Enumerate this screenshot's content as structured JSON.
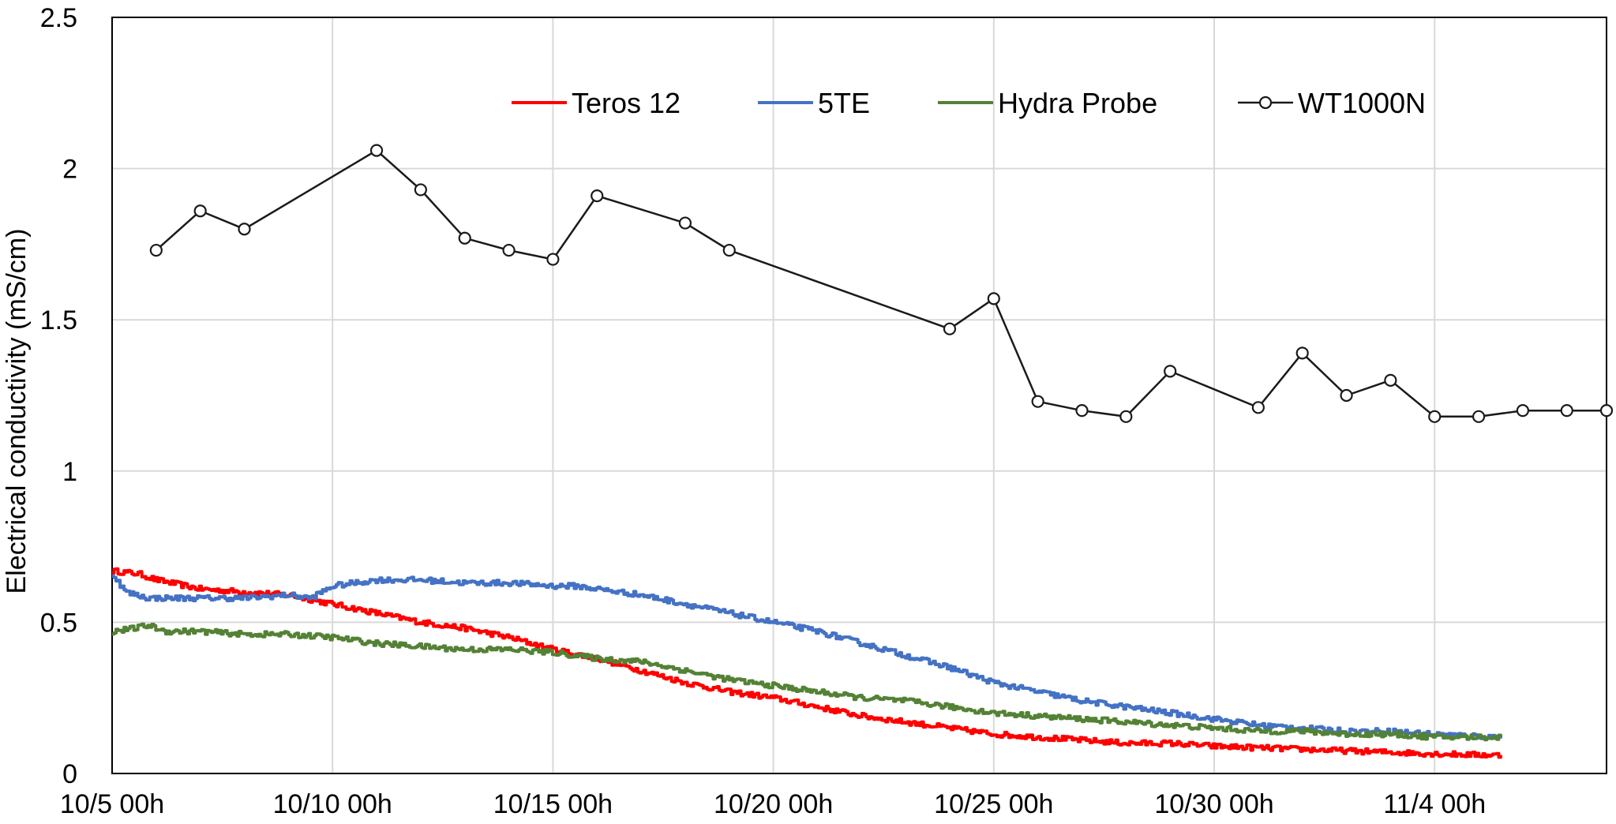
{
  "chart_data": {
    "type": "line",
    "title": "",
    "xlabel": "",
    "ylabel": "Electrical conductivity (mS/cm)",
    "x_unit": "day offset from 10/5 00h",
    "xlim": [
      0,
      33.9
    ],
    "ylim": [
      0,
      2.5
    ],
    "x_ticks": [
      {
        "value": 0,
        "label": "10/5 00h"
      },
      {
        "value": 5,
        "label": "10/10 00h"
      },
      {
        "value": 10,
        "label": "10/15 00h"
      },
      {
        "value": 15,
        "label": "10/20 00h"
      },
      {
        "value": 20,
        "label": "10/25 00h"
      },
      {
        "value": 25,
        "label": "10/30 00h"
      },
      {
        "value": 30,
        "label": "11/4 00h"
      }
    ],
    "y_ticks": [
      {
        "value": 0,
        "label": "0"
      },
      {
        "value": 0.5,
        "label": "0.5"
      },
      {
        "value": 1,
        "label": "1"
      },
      {
        "value": 1.5,
        "label": "1.5"
      },
      {
        "value": 2,
        "label": "2"
      },
      {
        "value": 2.5,
        "label": "2.5"
      }
    ],
    "grid": true,
    "legend_position": "top",
    "series": [
      {
        "name": "Teros 12",
        "color": "#ff0000",
        "style": "noisy-step",
        "x": [
          0,
          0.6,
          1,
          2,
          3,
          4,
          5,
          6,
          7,
          8,
          9,
          10,
          11,
          12,
          13,
          14,
          15,
          16,
          17,
          18,
          19,
          20,
          21,
          22,
          23,
          24,
          25,
          26,
          27,
          28,
          29,
          30,
          31.5
        ],
        "y": [
          0.67,
          0.66,
          0.64,
          0.61,
          0.6,
          0.59,
          0.56,
          0.53,
          0.5,
          0.48,
          0.45,
          0.41,
          0.38,
          0.34,
          0.3,
          0.27,
          0.25,
          0.22,
          0.19,
          0.17,
          0.15,
          0.13,
          0.12,
          0.11,
          0.1,
          0.1,
          0.09,
          0.085,
          0.08,
          0.075,
          0.07,
          0.065,
          0.06
        ]
      },
      {
        "name": "5TE",
        "color": "#4472c4",
        "style": "noisy-step",
        "x": [
          0,
          0.3,
          0.8,
          1.5,
          3,
          4,
          4.5,
          5,
          6,
          7,
          8,
          9,
          10,
          10.5,
          11,
          12,
          13,
          14,
          15,
          16,
          17,
          18,
          19,
          20,
          21,
          22,
          23,
          24,
          25,
          26,
          27,
          28,
          29,
          30,
          31.5
        ],
        "y": [
          0.66,
          0.6,
          0.58,
          0.58,
          0.58,
          0.59,
          0.58,
          0.62,
          0.64,
          0.64,
          0.63,
          0.63,
          0.62,
          0.62,
          0.61,
          0.59,
          0.56,
          0.53,
          0.5,
          0.47,
          0.43,
          0.39,
          0.35,
          0.3,
          0.27,
          0.24,
          0.22,
          0.2,
          0.18,
          0.16,
          0.15,
          0.14,
          0.14,
          0.13,
          0.12
        ]
      },
      {
        "name": "Hydra Probe",
        "color": "#548235",
        "style": "noisy-step",
        "x": [
          0,
          0.5,
          0.8,
          1.2,
          2,
          3,
          4,
          5,
          6,
          7,
          8,
          9,
          10,
          11,
          12,
          13,
          14,
          15,
          16,
          17,
          18,
          19,
          20,
          21,
          22,
          23,
          24,
          25,
          26,
          27,
          28,
          29,
          30,
          31.5
        ],
        "y": [
          0.47,
          0.48,
          0.49,
          0.47,
          0.47,
          0.46,
          0.46,
          0.45,
          0.43,
          0.42,
          0.41,
          0.41,
          0.4,
          0.38,
          0.37,
          0.34,
          0.31,
          0.29,
          0.27,
          0.25,
          0.24,
          0.22,
          0.2,
          0.19,
          0.18,
          0.17,
          0.16,
          0.15,
          0.14,
          0.14,
          0.13,
          0.13,
          0.12,
          0.12
        ]
      },
      {
        "name": "WT1000N",
        "color": "#1a1a1a",
        "style": "line-markers",
        "x": [
          1,
          2,
          3,
          6,
          7,
          8,
          9,
          10,
          11,
          13,
          14,
          19,
          20,
          21,
          22,
          23,
          24,
          26,
          27,
          28,
          29,
          30,
          31,
          32,
          33,
          33.9
        ],
        "y": [
          1.73,
          1.86,
          1.8,
          2.06,
          1.93,
          1.77,
          1.73,
          1.7,
          1.91,
          1.82,
          1.73,
          1.47,
          1.57,
          1.23,
          1.2,
          1.18,
          1.33,
          1.21,
          1.39,
          1.25,
          1.3,
          1.18,
          1.18,
          1.2,
          1.2,
          1.2
        ]
      }
    ]
  }
}
